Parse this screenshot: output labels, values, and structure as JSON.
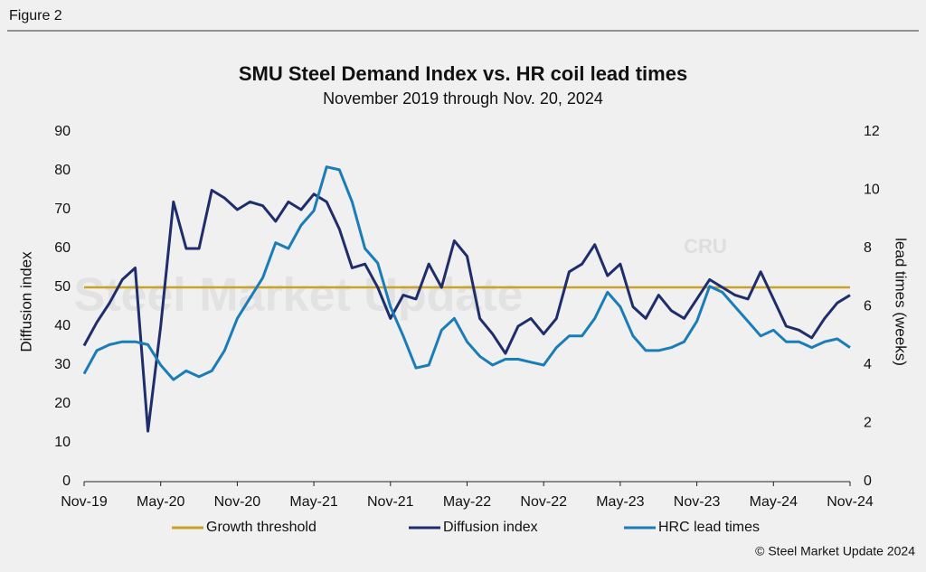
{
  "figure_label": "Figure 2",
  "chart_data": {
    "type": "line",
    "title": "SMU Steel Demand Index vs. HR coil lead times",
    "subtitle": "November 2019 through Nov. 20, 2024",
    "ylabel": "Diffusion index",
    "y2label": "lead times (weeks)",
    "watermark": "Steel Market Update",
    "logo": "CRU",
    "source": "© Steel Market Update 2024",
    "x": [
      "2019-11",
      "2019-12",
      "2020-01",
      "2020-02",
      "2020-03",
      "2020-04",
      "2020-05",
      "2020-06",
      "2020-07",
      "2020-08",
      "2020-09",
      "2020-10",
      "2020-11",
      "2020-12",
      "2021-01",
      "2021-02",
      "2021-03",
      "2021-04",
      "2021-05",
      "2021-06",
      "2021-07",
      "2021-08",
      "2021-09",
      "2021-10",
      "2021-11",
      "2021-12",
      "2022-01",
      "2022-02",
      "2022-03",
      "2022-04",
      "2022-05",
      "2022-06",
      "2022-07",
      "2022-08",
      "2022-09",
      "2022-10",
      "2022-11",
      "2022-12",
      "2023-01",
      "2023-02",
      "2023-03",
      "2023-04",
      "2023-05",
      "2023-06",
      "2023-07",
      "2023-08",
      "2023-09",
      "2023-10",
      "2023-11",
      "2023-12",
      "2024-01",
      "2024-02",
      "2024-03",
      "2024-04",
      "2024-05",
      "2024-06",
      "2024-07",
      "2024-08",
      "2024-09",
      "2024-10",
      "2024-11"
    ],
    "xticks": [
      {
        "value": "2019-11",
        "label": "Nov-19"
      },
      {
        "value": "2020-05",
        "label": "May-20"
      },
      {
        "value": "2020-11",
        "label": "Nov-20"
      },
      {
        "value": "2021-05",
        "label": "May-21"
      },
      {
        "value": "2021-11",
        "label": "Nov-21"
      },
      {
        "value": "2022-05",
        "label": "May-22"
      },
      {
        "value": "2022-11",
        "label": "Nov-22"
      },
      {
        "value": "2023-05",
        "label": "May-23"
      },
      {
        "value": "2023-11",
        "label": "Nov-23"
      },
      {
        "value": "2024-05",
        "label": "May-24"
      },
      {
        "value": "2024-11",
        "label": "Nov-24"
      }
    ],
    "ylim": [
      0,
      90
    ],
    "yticks": [
      0,
      10,
      20,
      30,
      40,
      50,
      60,
      70,
      80,
      90
    ],
    "y2lim": [
      0,
      12
    ],
    "y2ticks": [
      0,
      2,
      4,
      6,
      8,
      10,
      12
    ],
    "threshold": {
      "name": "Growth threshold",
      "value": 50,
      "color": "#c9a227"
    },
    "series": [
      {
        "name": "Diffusion index",
        "color": "#1f2d6b",
        "values": [
          35,
          41,
          46,
          52,
          55,
          13,
          40,
          72,
          60,
          60,
          75,
          73,
          70,
          72,
          71,
          67,
          72,
          70,
          74,
          72,
          65,
          55,
          56,
          50,
          42,
          48,
          47,
          56,
          50,
          62,
          58,
          42,
          38,
          33,
          40,
          42,
          38,
          42,
          54,
          56,
          61,
          53,
          56,
          45,
          42,
          48,
          44,
          42,
          47,
          52,
          50,
          48,
          47,
          54,
          47,
          40,
          39,
          37,
          42,
          46,
          48
        ]
      },
      {
        "name": "HRC lead times",
        "color": "#1b7db8",
        "axis": "y2",
        "values": [
          3.7,
          4.5,
          4.7,
          4.8,
          4.8,
          4.7,
          4.0,
          3.5,
          3.8,
          3.6,
          3.8,
          4.5,
          5.6,
          6.3,
          7.0,
          8.2,
          8.0,
          8.8,
          9.3,
          10.8,
          10.7,
          9.6,
          8.0,
          7.5,
          6.0,
          5.0,
          3.9,
          4.0,
          5.2,
          5.6,
          4.8,
          4.3,
          4.0,
          4.2,
          4.2,
          4.1,
          4.0,
          4.6,
          5.0,
          5.0,
          5.6,
          6.5,
          6.0,
          5.0,
          4.5,
          4.5,
          4.6,
          4.8,
          5.5,
          6.7,
          6.5,
          6.0,
          5.5,
          5.0,
          5.2,
          4.8,
          4.8,
          4.6,
          4.8,
          4.9,
          4.6
        ]
      }
    ]
  }
}
